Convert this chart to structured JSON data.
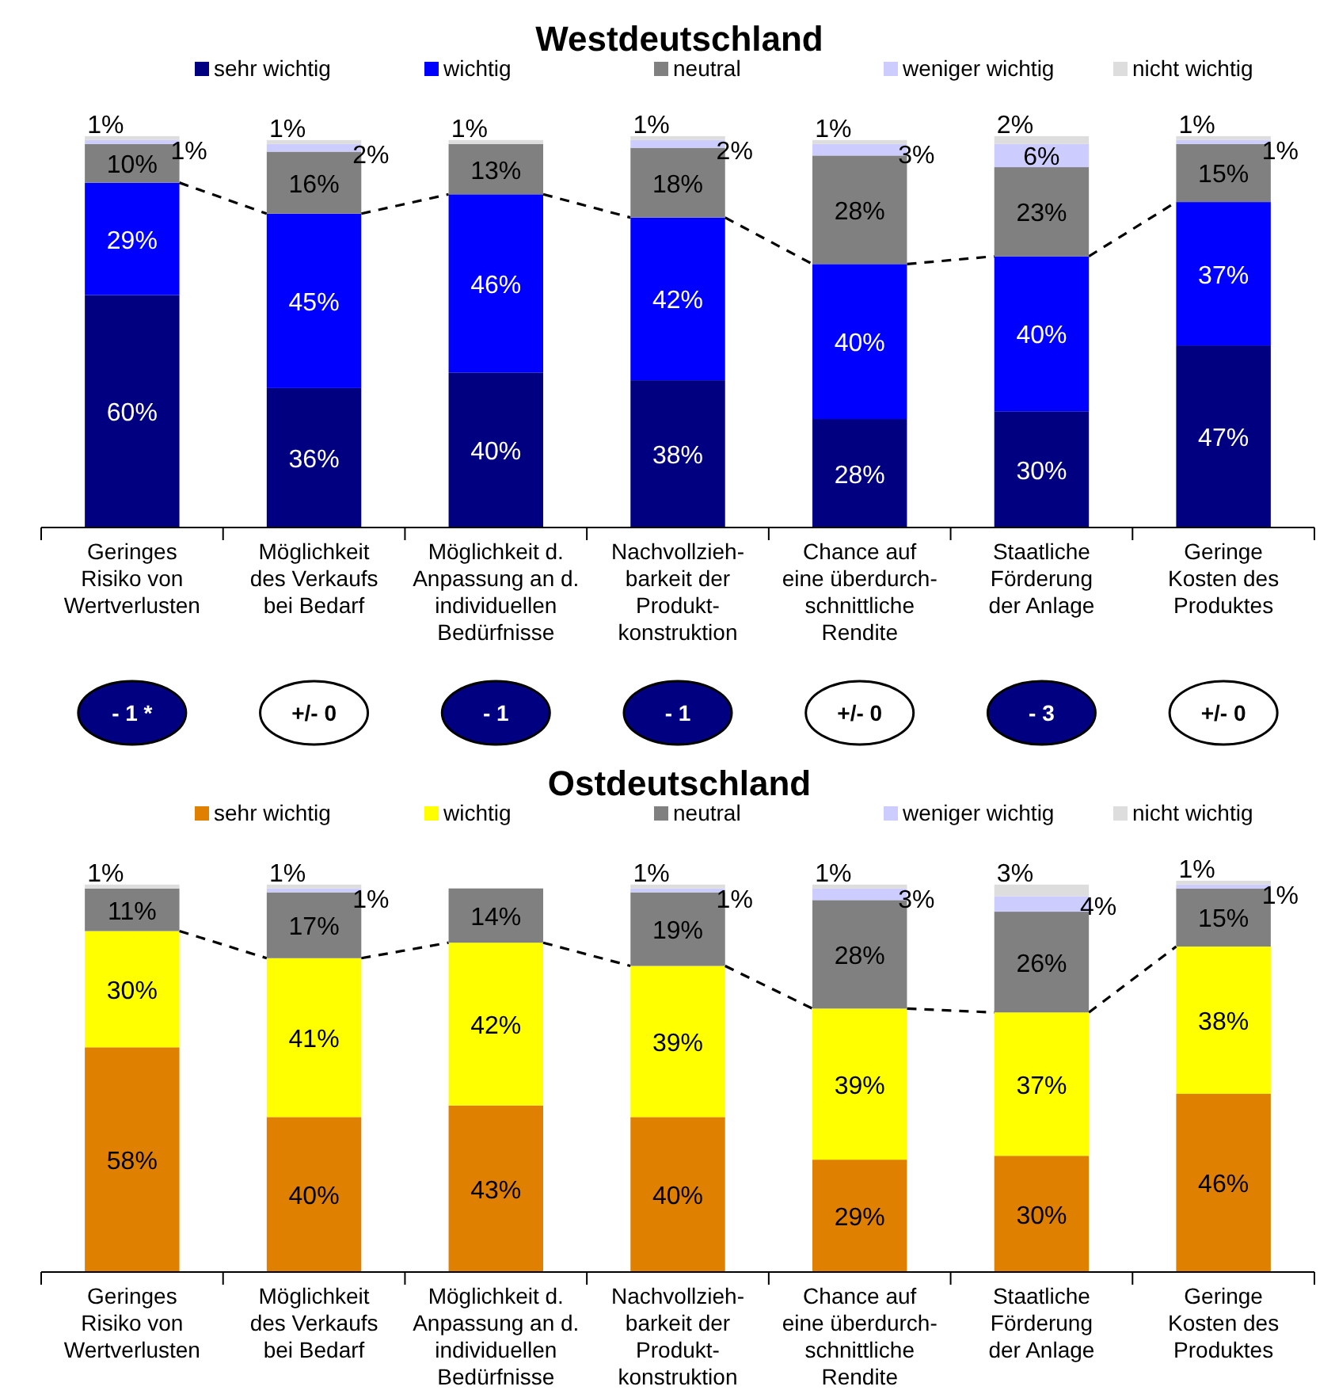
{
  "chart_data": [
    {
      "type": "bar",
      "title": "Westdeutschland",
      "stacked": true,
      "legend": "top",
      "tick_labels": "x",
      "categories": [
        "Geringes\nRisiko von\nWertverlusten",
        "Möglichkeit\ndes Verkaufs\nbei Bedarf",
        "Möglichkeit d.\nAnpassung an d.\nindividuellen\nBedürfnisse",
        "Nachvollzieh-\nbarkeit der\nProdukt-\nkonstruktion",
        "Chance auf\neine überdurch-\nschnittliche\nRendite",
        "Staatliche\nFörderung\nder Anlage",
        "Geringe\nKosten des\nProduktes"
      ],
      "series": [
        {
          "name": "sehr wichtig",
          "color": "#000080",
          "values": [
            60,
            36,
            40,
            38,
            28,
            30,
            47
          ],
          "value_labels": [
            "60%",
            "36%",
            "40%",
            "38%",
            "28%",
            "30%",
            "47%"
          ]
        },
        {
          "name": "wichtig",
          "color": "#0000ff",
          "values": [
            29,
            45,
            46,
            42,
            40,
            40,
            37
          ],
          "value_labels": [
            "29%",
            "45%",
            "46%",
            "42%",
            "40%",
            "40%",
            "37%"
          ]
        },
        {
          "name": "neutral",
          "color": "#808080",
          "values": [
            10,
            16,
            13,
            18,
            28,
            23,
            15
          ],
          "value_labels": [
            "10%",
            "16%",
            "13%",
            "18%",
            "28%",
            "23%",
            "15%"
          ]
        },
        {
          "name": "weniger wichtig",
          "color": "#ccccff",
          "values": [
            1,
            2,
            null,
            2,
            3,
            6,
            1
          ],
          "value_labels": [
            "1%",
            "2%",
            null,
            "2%",
            "3%",
            "6%",
            "1%"
          ]
        },
        {
          "name": "nicht wichtig",
          "color": "#dddddd",
          "values": [
            1,
            1,
            1,
            1,
            1,
            2,
            1
          ],
          "value_labels": [
            "1%",
            "1%",
            "1%",
            "1%",
            "1%",
            "2%",
            "1%"
          ]
        }
      ],
      "annotations": [
        "- 1 *",
        "+/- 0",
        "- 1",
        "- 1",
        "+/- 0",
        "- 3",
        "+/- 0"
      ]
    },
    {
      "type": "bar",
      "title": "Ostdeutschland",
      "stacked": true,
      "legend": "top",
      "tick_labels": "x",
      "categories": [
        "Geringes\nRisiko von\nWertverlusten",
        "Möglichkeit\ndes Verkaufs\nbei Bedarf",
        "Möglichkeit d.\nAnpassung an d.\nindividuellen\nBedürfnisse",
        "Nachvollzieh-\nbarkeit der\nProdukt-\nkonstruktion",
        "Chance auf\neine überdurch-\nschnittliche\nRendite",
        "Staatliche\nFörderung\nder Anlage",
        "Geringe\nKosten des\nProduktes"
      ],
      "series": [
        {
          "name": "sehr wichtig",
          "color": "#df8000",
          "values": [
            58,
            40,
            43,
            40,
            29,
            30,
            46
          ],
          "value_labels": [
            "58%",
            "40%",
            "43%",
            "40%",
            "29%",
            "30%",
            "46%"
          ]
        },
        {
          "name": "wichtig",
          "color": "#ffff00",
          "values": [
            30,
            41,
            42,
            39,
            39,
            37,
            38
          ],
          "value_labels": [
            "30%",
            "41%",
            "42%",
            "39%",
            "39%",
            "37%",
            "38%"
          ]
        },
        {
          "name": "neutral",
          "color": "#808080",
          "values": [
            11,
            17,
            14,
            19,
            28,
            26,
            15
          ],
          "value_labels": [
            "11%",
            "17%",
            "14%",
            "19%",
            "28%",
            "26%",
            "15%"
          ]
        },
        {
          "name": "weniger wichtig",
          "color": "#ccccff",
          "values": [
            null,
            1,
            null,
            1,
            3,
            4,
            1
          ],
          "value_labels": [
            null,
            "1%",
            null,
            "1%",
            "3%",
            "4%",
            "1%"
          ]
        },
        {
          "name": "nicht wichtig",
          "color": "#dddddd",
          "values": [
            1,
            1,
            null,
            1,
            1,
            3,
            1
          ],
          "value_labels": [
            "1%",
            "1%",
            null,
            "1%",
            "1%",
            "3%",
            "1%"
          ]
        }
      ]
    }
  ]
}
